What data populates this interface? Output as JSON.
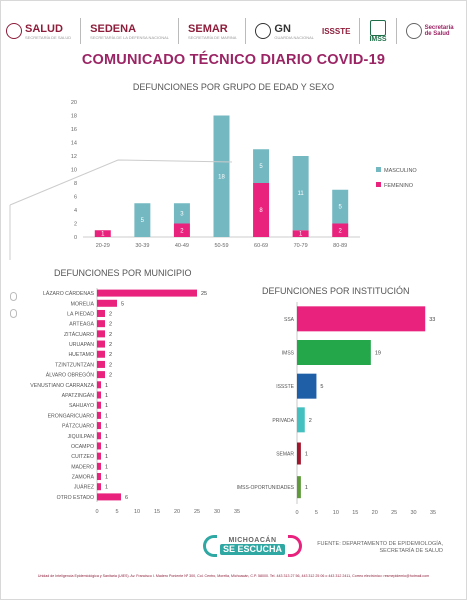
{
  "header": {
    "logos": [
      {
        "name": "SALUD",
        "sub": "SECRETARÍA DE SALUD"
      },
      {
        "name": "SEDENA",
        "sub": "SECRETARÍA DE LA DEFENSA NACIONAL"
      },
      {
        "name": "SEMAR",
        "sub": "SECRETARÍA DE MARINA"
      },
      {
        "name": "GN",
        "sub": "GUARDIA NACIONAL"
      },
      {
        "name": "ISSSTE",
        "sub": ""
      },
      {
        "name": "IMSS",
        "sub": ""
      },
      {
        "name": "Secretaría de Salud",
        "sub": ""
      }
    ]
  },
  "title": "COMUNICADO TÉCNICO DIARIO COVID-19",
  "chart_data": [
    {
      "type": "bar",
      "stacked": true,
      "title": "DEFUNCIONES POR GRUPO DE EDAD Y SEXO",
      "categories": [
        "20-29",
        "30-39",
        "40-49",
        "50-59",
        "60-69",
        "70-79",
        "80-89"
      ],
      "series": [
        {
          "name": "FEMENINO",
          "color": "#e8227d",
          "values": [
            1,
            0,
            2,
            0,
            8,
            1,
            2
          ]
        },
        {
          "name": "MASCULINO",
          "color": "#74b8c2",
          "values": [
            0,
            5,
            3,
            18,
            5,
            11,
            5
          ]
        }
      ],
      "data_labels": [
        [
          1,
          null,
          2,
          null,
          8,
          1,
          2
        ],
        [
          null,
          5,
          3,
          18,
          5,
          11,
          5
        ]
      ],
      "ylim": [
        0,
        20
      ],
      "yticks": [
        0,
        2,
        4,
        6,
        8,
        10,
        12,
        14,
        16,
        18,
        20
      ],
      "legend_position": "right",
      "legend_order": [
        "MASCULINO",
        "FEMENINO"
      ]
    },
    {
      "type": "bar",
      "orientation": "horizontal",
      "title": "DEFUNCIONES POR MUNICIPIO",
      "color": "#e8227d",
      "categories": [
        "LÁZARO CÁRDENAS",
        "MORELIA",
        "LA PIEDAD",
        "ARTEAGA",
        "ZITÁCUARO",
        "URUAPAN",
        "HUETAMO",
        "TZINTZUNTZAN",
        "ÁLVARO OBREGÓN",
        "VENUSTIANO CARRANZA",
        "APATZINGÁN",
        "SAHUAYO",
        "ERONGARICUARO",
        "PÁTZCUARO",
        "JIQUILPAN",
        "OCAMPO",
        "CUITZEO",
        "MADERO",
        "ZAMORA",
        "JUÁREZ",
        "OTRO ESTADO"
      ],
      "values": [
        25,
        5,
        2,
        2,
        2,
        2,
        2,
        2,
        2,
        1,
        1,
        1,
        1,
        1,
        1,
        1,
        1,
        1,
        1,
        1,
        6
      ],
      "xlim": [
        0,
        35
      ],
      "xticks": [
        0,
        5,
        10,
        15,
        20,
        25,
        30,
        35
      ]
    },
    {
      "type": "bar",
      "orientation": "horizontal",
      "title": "DEFUNCIONES POR INSTITUCIÓN",
      "categories": [
        "SSA",
        "IMSS",
        "ISSSTE",
        "PRIVADA",
        "SEMAR",
        "IMSS-OPORTUNIDADES"
      ],
      "values": [
        33,
        19,
        5,
        2,
        1,
        1
      ],
      "colors": [
        "#e8227d",
        "#24a64b",
        "#1f5fa8",
        "#45c0c0",
        "#a0172d",
        "#5e9a3c"
      ],
      "xlim": [
        0,
        35
      ],
      "xticks": [
        0,
        5,
        10,
        15,
        20,
        25,
        30,
        35
      ]
    }
  ],
  "brand": {
    "top": "MICHOACÁN",
    "bottom": "SE ESCUCHA"
  },
  "source": "FUENTE: DEPARTAMENTO DE EPIDEMIOLOGÍA, SECRETARÍA DE SALUD",
  "footer": "Unidad de Inteligencia Epidemiológica y Sanitaria (UIES). Av. Francisco I. Madero Poniente Nº 300, Col. Centro, Morelia, Michoacán, C.P. 58000. Tel. 443 313 27 56, 443 312 25 06 o 443 312 2411, Correo electrónico: resmepidemio@hotmail.com"
}
